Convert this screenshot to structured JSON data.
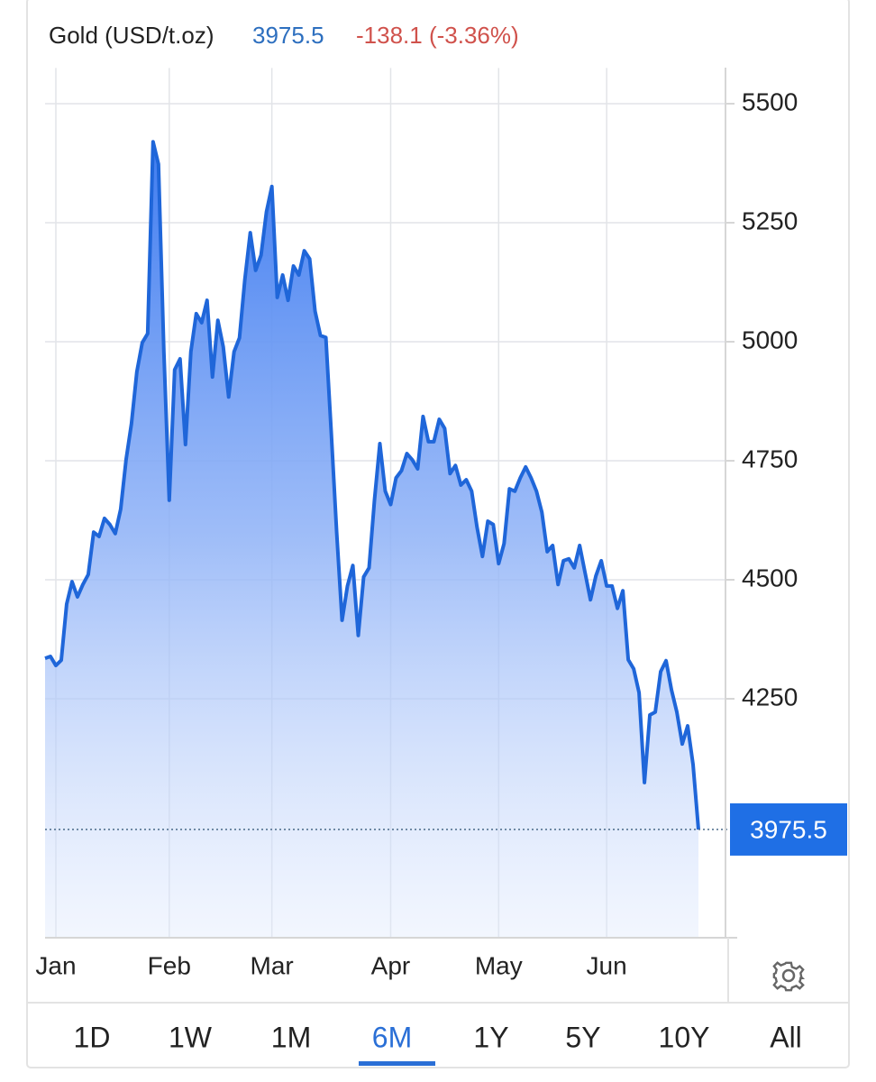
{
  "chart_data": {
    "type": "area",
    "title": "Gold (USD/t.oz)",
    "price": 3975.5,
    "change_label": "-138.1 (-3.36%)",
    "color": "#1f66d9",
    "categories": [
      null,
      null,
      "Jan",
      null,
      null,
      null,
      null,
      null,
      null,
      null,
      null,
      null,
      null,
      null,
      null,
      null,
      null,
      null,
      null,
      null,
      null,
      null,
      null,
      "Feb",
      null,
      null,
      null,
      null,
      null,
      null,
      null,
      null,
      null,
      null,
      null,
      null,
      null,
      null,
      null,
      null,
      null,
      null,
      "Mar",
      null,
      null,
      null,
      null,
      null,
      null,
      null,
      null,
      null,
      null,
      null,
      null,
      null,
      null,
      null,
      null,
      null,
      null,
      null,
      null,
      null,
      "Apr",
      null,
      null,
      null,
      null,
      null,
      null,
      null,
      null,
      null,
      null,
      null,
      null,
      null,
      null,
      null,
      null,
      null,
      null,
      null,
      "May",
      null,
      null,
      null,
      null,
      null,
      null,
      null,
      null,
      null,
      null,
      null,
      null,
      null,
      null,
      null,
      null,
      null,
      null,
      null,
      "Jun",
      null,
      null,
      null,
      null,
      null,
      null,
      null,
      null,
      null,
      null,
      null,
      null,
      null,
      null,
      null,
      null,
      null
    ],
    "values": [
      4335,
      4339,
      4320,
      4331,
      4449,
      4496,
      4464,
      4490,
      4511,
      4600,
      4591,
      4629,
      4616,
      4597,
      4648,
      4752,
      4828,
      4937,
      4998,
      5017,
      5420,
      5373,
      4979,
      4667,
      4941,
      4964,
      4784,
      4979,
      5059,
      5040,
      5087,
      4926,
      5045,
      4989,
      4884,
      4979,
      5008,
      5131,
      5229,
      5150,
      5182,
      5273,
      5326,
      5093,
      5140,
      5087,
      5159,
      5140,
      5191,
      5174,
      5064,
      5013,
      5009,
      4809,
      4600,
      4415,
      4487,
      4530,
      4383,
      4506,
      4525,
      4667,
      4786,
      4686,
      4658,
      4714,
      4729,
      4765,
      4752,
      4733,
      4843,
      4790,
      4790,
      4837,
      4818,
      4723,
      4740,
      4699,
      4710,
      4686,
      4610,
      4549,
      4623,
      4616,
      4534,
      4576,
      4691,
      4686,
      4714,
      4737,
      4714,
      4686,
      4642,
      4559,
      4572,
      4490,
      4540,
      4544,
      4525,
      4572,
      4515,
      4458,
      4508,
      4540,
      4487,
      4487,
      4440,
      4477,
      4332,
      4313,
      4263,
      4074,
      4216,
      4222,
      4307,
      4330,
      4269,
      4222,
      4155,
      4193,
      4112,
      3975.5
    ],
    "ylim": [
      3750,
      5575
    ],
    "yticks": [
      4250,
      4500,
      4750,
      5000,
      5250,
      5500
    ],
    "grid": true,
    "ranges": [
      "1D",
      "1W",
      "1M",
      "6M",
      "1Y",
      "5Y",
      "10Y",
      "All"
    ],
    "selected_range": "6M"
  }
}
